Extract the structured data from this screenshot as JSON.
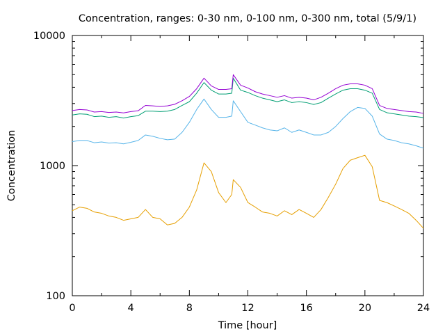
{
  "chart_data": {
    "type": "line",
    "title": "Concentration, ranges: 0-30 nm, 0-100 nm, 0-300 nm, total (5/9/1)",
    "xlabel": "Time [hour]",
    "ylabel": "Concentration",
    "xlim": [
      0,
      24
    ],
    "ylim": [
      100,
      10000
    ],
    "yscale": "log",
    "grid": false,
    "legend": "none",
    "x_ticks": [
      0,
      4,
      8,
      12,
      16,
      20,
      24
    ],
    "x_tick_labels": [
      "0",
      "4",
      "8",
      "12",
      "16",
      "20",
      "24"
    ],
    "y_ticks": [
      100,
      1000,
      10000
    ],
    "y_tick_labels": [
      "100",
      "1000",
      "10000"
    ],
    "x": [
      0,
      0.5,
      1,
      1.5,
      2,
      2.5,
      3,
      3.5,
      4,
      4.5,
      5,
      5.5,
      6,
      6.5,
      7,
      7.5,
      8,
      8.5,
      9,
      9.5,
      10,
      10.5,
      10.9,
      11,
      11.5,
      12,
      12.5,
      13,
      13.5,
      14,
      14.5,
      15,
      15.5,
      16,
      16.5,
      17,
      17.5,
      18,
      18.5,
      19,
      19.5,
      20,
      20.5,
      21,
      21.5,
      22,
      22.5,
      23,
      23.5,
      24
    ],
    "series": [
      {
        "color": "#e69f00",
        "values": [
          450,
          480,
          470,
          440,
          430,
          410,
          400,
          380,
          390,
          400,
          460,
          400,
          390,
          350,
          360,
          400,
          480,
          650,
          1050,
          900,
          620,
          520,
          600,
          780,
          680,
          520,
          480,
          440,
          430,
          410,
          450,
          420,
          460,
          430,
          400,
          460,
          570,
          720,
          950,
          1100,
          1150,
          1200,
          980,
          540,
          520,
          490,
          460,
          430,
          380,
          330
        ]
      },
      {
        "color": "#56b4e9",
        "values": [
          1530,
          1560,
          1560,
          1500,
          1520,
          1490,
          1500,
          1470,
          1510,
          1560,
          1720,
          1680,
          1620,
          1580,
          1600,
          1800,
          2150,
          2700,
          3250,
          2700,
          2350,
          2350,
          2400,
          3150,
          2600,
          2150,
          2050,
          1950,
          1880,
          1850,
          1950,
          1800,
          1880,
          1800,
          1720,
          1720,
          1800,
          2000,
          2300,
          2600,
          2800,
          2750,
          2400,
          1750,
          1600,
          1560,
          1500,
          1470,
          1420,
          1360
        ]
      },
      {
        "color": "#009e73",
        "values": [
          2450,
          2500,
          2480,
          2380,
          2400,
          2350,
          2380,
          2320,
          2380,
          2420,
          2620,
          2620,
          2600,
          2620,
          2700,
          2900,
          3100,
          3600,
          4350,
          3800,
          3550,
          3550,
          3600,
          4700,
          3800,
          3650,
          3450,
          3300,
          3200,
          3100,
          3200,
          3050,
          3100,
          3050,
          2950,
          3050,
          3300,
          3550,
          3800,
          3900,
          3900,
          3800,
          3600,
          2700,
          2550,
          2500,
          2450,
          2400,
          2380,
          2340
        ]
      },
      {
        "color": "#9400d3",
        "values": [
          2650,
          2700,
          2680,
          2580,
          2600,
          2560,
          2580,
          2540,
          2600,
          2640,
          2900,
          2880,
          2850,
          2880,
          2960,
          3150,
          3400,
          3900,
          4700,
          4100,
          3850,
          3850,
          3900,
          5000,
          4150,
          3950,
          3700,
          3550,
          3450,
          3350,
          3450,
          3300,
          3350,
          3300,
          3200,
          3350,
          3600,
          3900,
          4150,
          4250,
          4250,
          4150,
          3900,
          2900,
          2750,
          2700,
          2650,
          2600,
          2580,
          2520
        ]
      }
    ]
  }
}
